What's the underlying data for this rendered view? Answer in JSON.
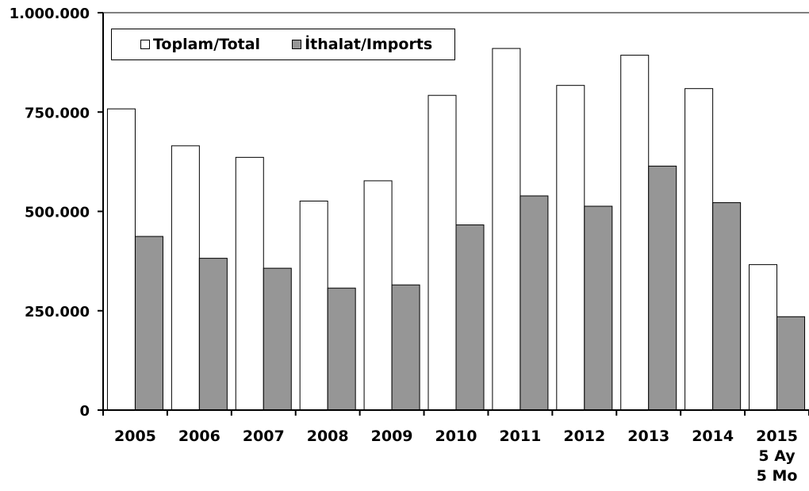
{
  "chart_data": {
    "type": "bar",
    "title": "",
    "xlabel": "",
    "ylabel": "",
    "categories": [
      "2005",
      "2006",
      "2007",
      "2008",
      "2009",
      "2010",
      "2011",
      "2012",
      "2013",
      "2014",
      "2015\n5 Ay\n5 Mo"
    ],
    "series": [
      {
        "name": "Toplam/Total",
        "color": "#ffffff",
        "values": [
          758000,
          665000,
          636000,
          526000,
          577000,
          792000,
          910000,
          817000,
          893000,
          809000,
          366000
        ]
      },
      {
        "name": "İthalat/Imports",
        "color": "#969696",
        "values": [
          437000,
          382000,
          357000,
          307000,
          315000,
          466000,
          539000,
          513000,
          614000,
          522000,
          235000
        ]
      }
    ],
    "ylim": [
      0,
      1000000
    ],
    "yticks": [
      0,
      250000,
      500000,
      750000,
      1000000
    ],
    "ytick_labels": [
      "0",
      "250.000",
      "500.000",
      "750.000",
      "1.000.000"
    ],
    "grid": false,
    "legend_position": "top-left"
  }
}
